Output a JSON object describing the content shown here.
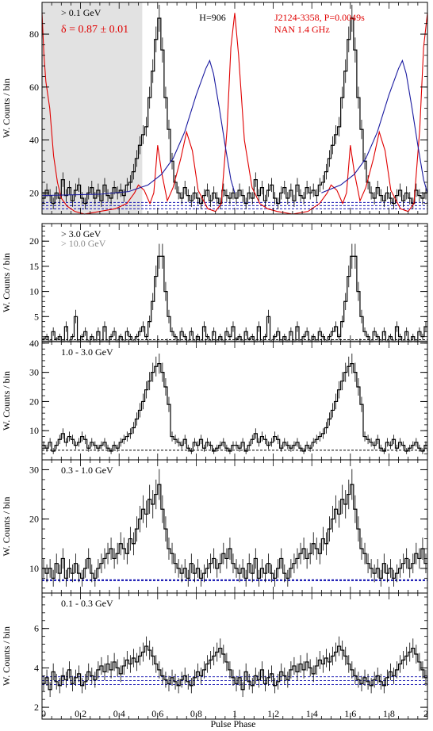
{
  "figure": {
    "xlabel": "Pulse Phase",
    "x_ticks": [
      "0",
      "0.2",
      "0.4",
      "0.6",
      "0.8",
      "1",
      "1.2",
      "1.4",
      "1.6",
      "1.8",
      "2"
    ],
    "ylabel": "W. Counts / bin"
  },
  "colors": {
    "histogram": "#000000",
    "radio": "#e00000",
    "fit": "#1a1aa0",
    "background_blue": "#1010b0",
    "shaded": "#e2e2e2",
    "secondary_label": "#8a8a8a"
  },
  "chart_data": [
    {
      "type": "histogram",
      "energy_label": "> 0.1 GeV",
      "index_label": "δ = 0.87 ± 0.01",
      "h_label": "H=906",
      "source_label": "J2124-3358, P=0.0049s",
      "radio_label": "NAN 1.4 GHz",
      "ylabel": "W. Counts / bin",
      "ylim": [
        12,
        92
      ],
      "yticks": [
        20,
        40,
        60,
        80
      ],
      "shaded_phase": [
        0,
        0.52
      ],
      "background_levels": [
        14,
        15.2,
        16.4
      ],
      "profile": [
        18,
        21,
        19,
        16,
        20,
        18,
        25,
        19,
        22,
        17,
        21,
        23,
        18,
        16,
        20,
        22,
        18,
        21,
        17,
        23,
        19,
        18,
        22,
        20,
        21,
        19,
        23,
        24,
        28,
        33,
        38,
        42,
        45,
        56,
        66,
        78,
        86,
        74,
        56,
        44,
        32,
        24,
        20,
        18,
        22,
        19,
        17,
        20,
        18,
        16,
        19,
        21,
        17,
        20,
        18,
        16,
        21,
        19,
        18,
        20
      ],
      "radio_curve": [
        [
          0,
          88
        ],
        [
          0.01,
          72
        ],
        [
          0.02,
          62
        ],
        [
          0.04,
          52
        ],
        [
          0.06,
          34
        ],
        [
          0.08,
          24
        ],
        [
          0.1,
          18
        ],
        [
          0.13,
          15
        ],
        [
          0.17,
          13
        ],
        [
          0.22,
          12
        ],
        [
          0.3,
          13
        ],
        [
          0.38,
          14
        ],
        [
          0.44,
          16
        ],
        [
          0.48,
          20
        ],
        [
          0.5,
          23
        ],
        [
          0.53,
          21
        ],
        [
          0.56,
          16
        ],
        [
          0.58,
          20
        ],
        [
          0.6,
          38
        ],
        [
          0.62,
          28
        ],
        [
          0.65,
          17
        ],
        [
          0.68,
          22
        ],
        [
          0.72,
          33
        ],
        [
          0.75,
          43
        ],
        [
          0.78,
          36
        ],
        [
          0.81,
          21
        ],
        [
          0.86,
          14
        ],
        [
          0.9,
          13
        ],
        [
          0.93,
          16
        ],
        [
          0.96,
          44
        ],
        [
          0.98,
          75
        ],
        [
          1.0,
          88
        ],
        [
          1.02,
          72
        ],
        [
          1.05,
          40
        ],
        [
          1.09,
          22
        ],
        [
          1.13,
          16
        ],
        [
          1.17,
          14
        ],
        [
          1.22,
          13
        ],
        [
          1.3,
          12
        ],
        [
          1.38,
          13
        ],
        [
          1.44,
          16
        ],
        [
          1.48,
          20
        ],
        [
          1.5,
          23
        ],
        [
          1.53,
          21
        ],
        [
          1.56,
          16
        ],
        [
          1.58,
          20
        ],
        [
          1.6,
          38
        ],
        [
          1.62,
          28
        ],
        [
          1.65,
          17
        ],
        [
          1.68,
          22
        ],
        [
          1.72,
          33
        ],
        [
          1.75,
          43
        ],
        [
          1.78,
          36
        ],
        [
          1.81,
          21
        ],
        [
          1.86,
          14
        ],
        [
          1.9,
          13
        ],
        [
          1.93,
          16
        ],
        [
          1.96,
          44
        ],
        [
          1.98,
          75
        ],
        [
          2.0,
          88
        ]
      ],
      "fit_curves": [
        [
          [
            0,
            19
          ],
          [
            0.3,
            19.5
          ],
          [
            0.45,
            20.5
          ],
          [
            0.55,
            23
          ],
          [
            0.62,
            27
          ],
          [
            0.68,
            33
          ],
          [
            0.74,
            43
          ],
          [
            0.8,
            57
          ],
          [
            0.85,
            67
          ],
          [
            0.87,
            70
          ],
          [
            0.89,
            65
          ],
          [
            0.92,
            52
          ],
          [
            0.95,
            38
          ],
          [
            0.98,
            25
          ],
          [
            1.0,
            20
          ]
        ],
        [
          [
            1.45,
            20
          ],
          [
            1.55,
            23
          ],
          [
            1.62,
            27
          ],
          [
            1.68,
            33
          ],
          [
            1.74,
            43
          ],
          [
            1.8,
            57
          ],
          [
            1.85,
            67
          ],
          [
            1.87,
            70
          ],
          [
            1.89,
            65
          ],
          [
            1.92,
            52
          ],
          [
            1.95,
            38
          ],
          [
            1.98,
            25
          ],
          [
            2.0,
            20
          ]
        ]
      ]
    },
    {
      "type": "histogram",
      "energy_label": "> 3.0 GeV",
      "secondary_energy_label": "> 10.0 GeV",
      "ylabel": "W. Counts / bin",
      "ylim": [
        0,
        23.5
      ],
      "yticks": [
        5,
        10,
        15,
        20
      ],
      "background_levels": [
        0.4
      ],
      "profile": [
        0.5,
        1,
        0,
        2,
        0.5,
        1,
        0,
        3,
        0,
        1,
        5,
        0,
        1,
        2,
        0,
        1,
        0,
        2,
        0,
        3,
        0,
        1,
        2,
        0,
        1,
        0,
        2,
        1,
        0,
        1,
        2,
        3,
        1,
        4,
        8,
        13,
        17,
        17,
        10,
        5,
        2,
        1,
        0,
        2,
        1,
        0,
        2,
        0,
        1,
        0,
        3,
        1,
        0,
        2,
        0,
        1,
        0,
        2,
        1,
        3
      ],
      "secondary_profile": [
        0,
        0,
        0,
        0,
        0,
        0,
        0,
        0,
        0,
        0,
        0,
        0,
        0,
        0,
        0,
        0,
        0,
        0,
        0,
        0,
        0,
        0,
        0,
        0,
        0,
        0,
        0,
        0,
        0,
        0,
        0,
        0,
        0,
        0,
        0,
        0,
        0,
        0,
        0,
        0,
        0,
        0,
        0,
        0,
        0,
        0,
        0,
        0,
        0,
        0,
        0,
        0,
        0,
        0,
        0,
        0,
        0,
        0,
        0,
        0
      ]
    },
    {
      "type": "histogram",
      "energy_label": "1.0 - 3.0 GeV",
      "ylabel": "W. Counts / bin",
      "ylim": [
        0,
        40.5
      ],
      "yticks": [
        10,
        20,
        30,
        40
      ],
      "background_levels": [
        3.3
      ],
      "profile": [
        5,
        4,
        6,
        3,
        5,
        7,
        9,
        6,
        8,
        7,
        5,
        6,
        8,
        7,
        4,
        6,
        5,
        4,
        5,
        6,
        4,
        3,
        5,
        4,
        6,
        7,
        8,
        9,
        11,
        14,
        17,
        20,
        24,
        27,
        30,
        32,
        33,
        30,
        25,
        19,
        8,
        7,
        6,
        5,
        7,
        4,
        3,
        6,
        5,
        7,
        4,
        6,
        5,
        3,
        4,
        5,
        6,
        4,
        3,
        5
      ]
    },
    {
      "type": "histogram",
      "energy_label": "0.3 - 1.0 GeV",
      "ylabel": "W. Counts / bin",
      "ylim": [
        5,
        32
      ],
      "yticks": [
        10,
        20,
        30
      ],
      "background_levels": [
        7.6
      ],
      "profile": [
        10,
        9,
        10,
        8,
        11,
        9,
        12,
        8,
        10,
        9,
        11,
        9,
        8,
        10,
        12,
        9,
        8,
        10,
        11,
        12,
        13,
        14,
        12,
        13,
        15,
        14,
        13,
        16,
        15,
        18,
        20,
        22,
        21,
        24,
        23,
        25,
        27,
        22,
        18,
        14,
        13,
        11,
        10,
        9,
        10,
        8,
        11,
        9,
        10,
        8,
        9,
        10,
        11,
        12,
        10,
        11,
        13,
        12,
        14,
        11
      ]
    },
    {
      "type": "histogram",
      "energy_label": "0.1 - 0.3 GeV",
      "ylabel": "W. Counts / bin",
      "ylim": [
        1.4,
        7.8
      ],
      "yticks": [
        2,
        4,
        6
      ],
      "background_levels": [
        3.15,
        3.35,
        3.55
      ],
      "profile": [
        3.2,
        3.5,
        2.9,
        3.8,
        3.3,
        3.1,
        3.6,
        3.4,
        3.9,
        3.2,
        3.5,
        3.7,
        3.1,
        3.3,
        3.8,
        3.6,
        3.4,
        3.9,
        4.1,
        3.8,
        4.2,
        3.9,
        4.3,
        4.0,
        3.7,
        4.1,
        4.4,
        4.2,
        4.5,
        4.3,
        4.6,
        4.8,
        5.1,
        4.9,
        4.6,
        4.2,
        3.9,
        3.6,
        3.4,
        3.2,
        3.5,
        3.3,
        3.1,
        3.4,
        3.6,
        3.3,
        3.1,
        3.5,
        3.8,
        3.6,
        3.9,
        4.2,
        4.4,
        4.6,
        4.8,
        5.0,
        4.7,
        4.3,
        3.9,
        3.5
      ]
    }
  ]
}
